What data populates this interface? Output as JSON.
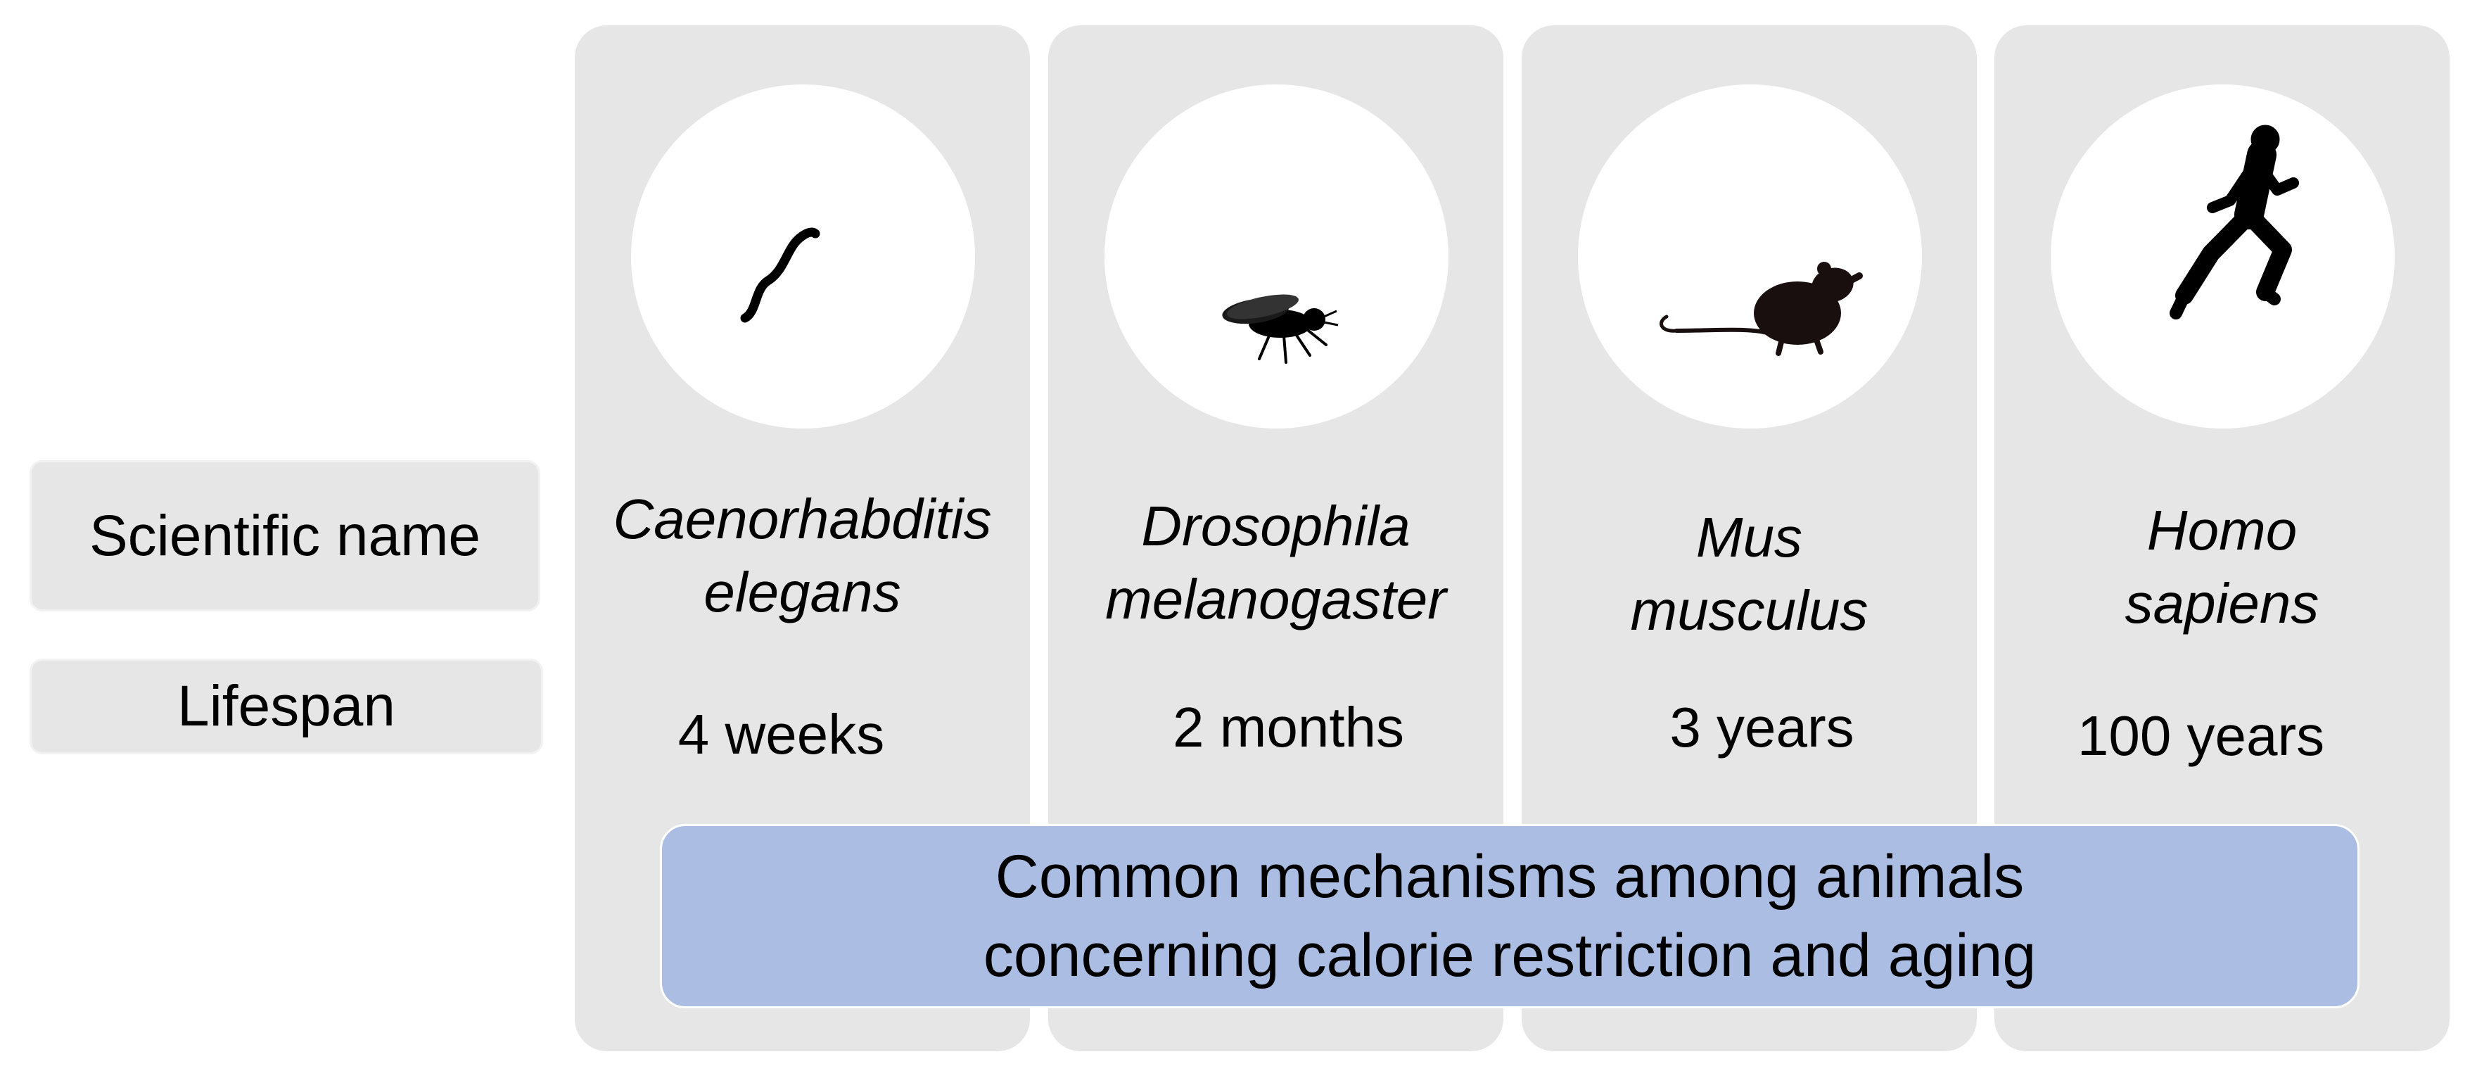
{
  "row_labels": {
    "scientific_name": "Scientific name",
    "lifespan": "Lifespan"
  },
  "organisms": [
    {
      "icon": "worm-icon",
      "name_line1": "Caenorhabditis",
      "name_line2": "elegans",
      "lifespan": "4 weeks"
    },
    {
      "icon": "fly-icon",
      "name_line1": "Drosophila",
      "name_line2": "melanogaster",
      "lifespan": "2 months"
    },
    {
      "icon": "mouse-icon",
      "name_line1": "Mus",
      "name_line2": "musculus",
      "lifespan": "3 years"
    },
    {
      "icon": "runner-icon",
      "name_line1": "Homo",
      "name_line2": "sapiens",
      "lifespan": "100 years"
    }
  ],
  "banner": {
    "line1": "Common mechanisms among animals",
    "line2": "concerning calorie restriction and aging"
  }
}
